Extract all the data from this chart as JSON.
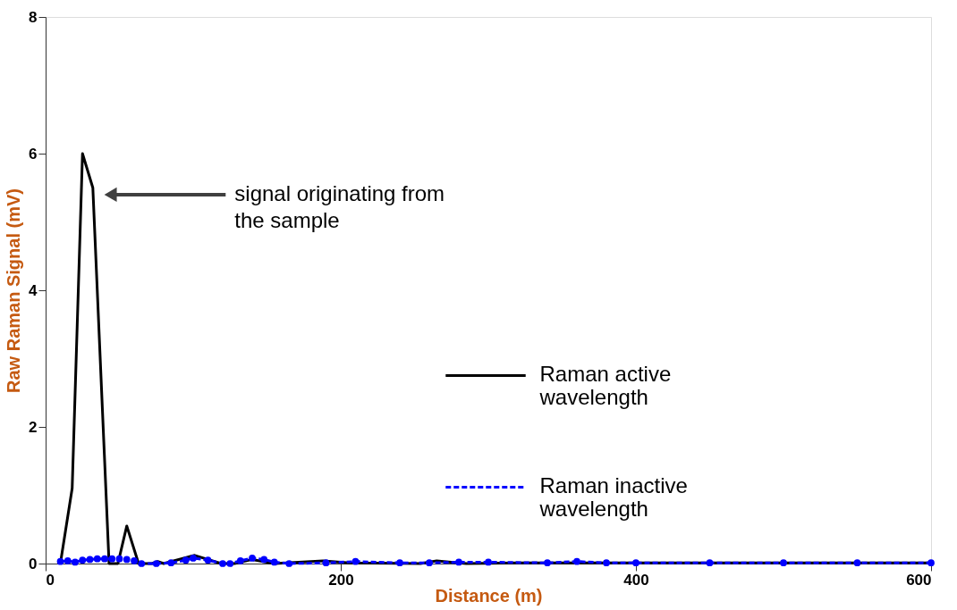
{
  "chart_data": {
    "type": "line",
    "xlabel": "Distance (m)",
    "ylabel": "Raw Raman Signal (mV)",
    "xlim": [
      0,
      600
    ],
    "xticks": [
      0,
      200,
      400,
      600
    ],
    "ylim": [
      0,
      8
    ],
    "yticks": [
      0,
      2,
      4,
      6,
      8
    ],
    "grid": false,
    "legend": "right",
    "annotations": [
      {
        "text": "signal originating from the sample",
        "x": 44,
        "y": 5.4
      }
    ],
    "series": [
      {
        "name": "Raman active wavelength",
        "color": "#000000",
        "line_style": "solid",
        "marker": "none",
        "x": [
          10,
          18,
          25,
          32,
          43,
          49,
          55,
          63,
          72,
          76,
          80,
          101,
          119,
          128,
          140,
          155,
          188,
          206,
          254,
          265,
          285,
          320,
          400,
          500,
          600
        ],
        "values": [
          0,
          1.1,
          6.0,
          5.5,
          0,
          0,
          0.55,
          0,
          0,
          0.03,
          0,
          0.12,
          0,
          0,
          0.06,
          0,
          0.04,
          0.01,
          0,
          0.04,
          0,
          0.01,
          0.01,
          0.01,
          0.01
        ]
      },
      {
        "name": "Raman inactive wavelength",
        "color": "#0000ff",
        "line_style": "dashed",
        "marker": "circle",
        "x": [
          10,
          15,
          20,
          25,
          30,
          35,
          40,
          45,
          50,
          55,
          60,
          65,
          75,
          85,
          95,
          100,
          110,
          120,
          125,
          132,
          140,
          148,
          155,
          165,
          190,
          210,
          240,
          260,
          280,
          300,
          340,
          360,
          380,
          400,
          450,
          500,
          550,
          600
        ],
        "values": [
          0.03,
          0.04,
          0.02,
          0.05,
          0.06,
          0.07,
          0.07,
          0.07,
          0.07,
          0.06,
          0.04,
          0,
          0,
          0.01,
          0.05,
          0.08,
          0.05,
          0,
          0,
          0.04,
          0.08,
          0.06,
          0.02,
          0,
          0.01,
          0.03,
          0.01,
          0.01,
          0.02,
          0.02,
          0.01,
          0.03,
          0.01,
          0.01,
          0.01,
          0.01,
          0.01,
          0.01
        ]
      }
    ]
  }
}
